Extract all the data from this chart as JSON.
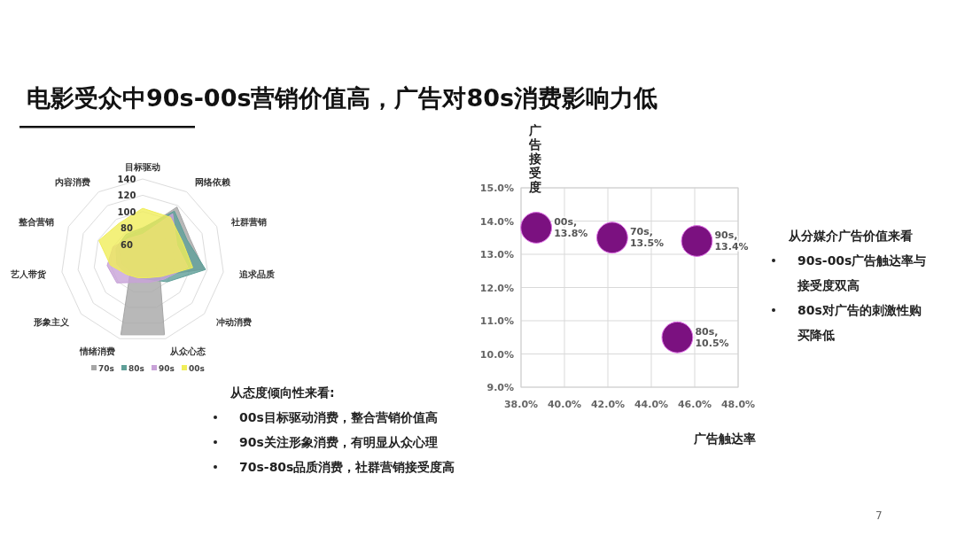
{
  "chart_data": [
    {
      "type": "other",
      "title": "电影受众中90s-00s营销价值高，广告对80s消费影响力低",
      "annotations": [
        "7"
      ]
    },
    {
      "type": "radar",
      "categories": [
        "目标驱动",
        "网络依赖",
        "社群营销",
        "追求品质",
        "冲动消费",
        "从众心态",
        "情绪消费",
        "形象主义",
        "艺人带货",
        "整合营销",
        "内容消费"
      ],
      "ylim": [
        40,
        140
      ],
      "yticks": [
        60,
        80,
        100,
        120,
        140
      ],
      "grid": true,
      "legend": "bottom",
      "series": [
        {
          "name": "70s",
          "color": "#a6a6a6",
          "values": [
            78,
            118,
            104,
            116,
            68,
            135,
            135,
            60,
            66,
            72,
            75
          ]
        },
        {
          "name": "80s",
          "color": "#5f9f98",
          "values": [
            80,
            112,
            100,
            118,
            80,
            64,
            62,
            66,
            72,
            76,
            78
          ]
        },
        {
          "name": "90s",
          "color": "#c8a2d8",
          "values": [
            72,
            108,
            86,
            96,
            75,
            68,
            68,
            82,
            84,
            80,
            72
          ]
        },
        {
          "name": "00s",
          "color": "#f0ee5a",
          "values": [
            104,
            103,
            94,
            102,
            70,
            62,
            62,
            66,
            80,
            99,
            94
          ]
        }
      ],
      "annotations": [
        "从态度倾向性来看:",
        "00s目标驱动消费，整合营销价值高",
        "90s关注形象消费，有明显从众心理",
        "70s-80s品质消费，社群营销接受度高"
      ]
    },
    {
      "type": "scatter",
      "x": [
        38.7,
        42.2,
        46.1,
        45.2
      ],
      "values": [
        13.8,
        13.5,
        13.4,
        10.5
      ],
      "color": "#7b1180",
      "marker": "circle",
      "value_labels": [
        "00s,\n13.8%",
        "70s,\n13.5%",
        "90s,\n13.4%",
        "80s,\n10.5%"
      ],
      "xlabel": "广告触达率",
      "ylabel": "广告接受度",
      "xlim": [
        38,
        48
      ],
      "ylim": [
        9,
        15
      ],
      "xticks": [
        {
          "value": 38,
          "label": "38.0%"
        },
        {
          "value": 40,
          "label": "40.0%"
        },
        {
          "value": 42,
          "label": "42.0%"
        },
        {
          "value": 44,
          "label": "44.0%"
        },
        {
          "value": 46,
          "label": "46.0%"
        },
        {
          "value": 48,
          "label": "48.0%"
        }
      ],
      "yticks": [
        {
          "value": 9,
          "label": "9.0%"
        },
        {
          "value": 10,
          "label": "10.0%"
        },
        {
          "value": 11,
          "label": "11.0%"
        },
        {
          "value": 12,
          "label": "12.0%"
        },
        {
          "value": 13,
          "label": "13.0%"
        },
        {
          "value": 14,
          "label": "14.0%"
        },
        {
          "value": 15,
          "label": "15.0%"
        }
      ],
      "grid": true,
      "annotations": [
        "从分媒介广告价值来看",
        "90s-00s广告触达率与接受度双高",
        "80s对广告的刺激性购买降低"
      ]
    }
  ]
}
